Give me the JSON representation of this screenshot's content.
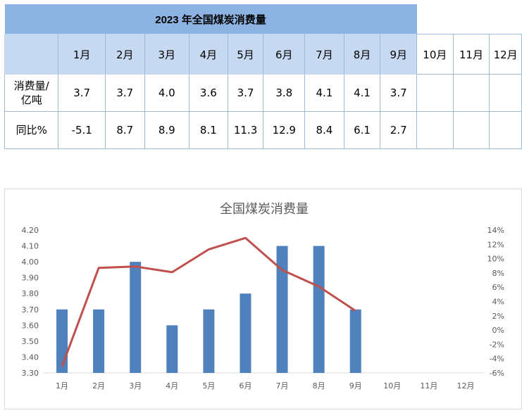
{
  "table": {
    "title": "2023 年全国煤炭消费量",
    "months": [
      "1月",
      "2月",
      "3月",
      "4月",
      "5月",
      "6月",
      "7月",
      "8月",
      "9月",
      "10月",
      "11月",
      "12月"
    ],
    "rows": [
      {
        "label_line1": "消费量/",
        "label_line2": "亿吨",
        "values": [
          "3.7",
          "3.7",
          "4.0",
          "3.6",
          "3.7",
          "3.8",
          "4.1",
          "4.1",
          "3.7",
          "",
          "",
          ""
        ]
      },
      {
        "label_line1": "同比%",
        "label_line2": "",
        "values": [
          "-5.1",
          "8.7",
          "8.9",
          "8.1",
          "11.3",
          "12.9",
          "8.4",
          "6.1",
          "2.7",
          "",
          "",
          ""
        ]
      }
    ]
  },
  "chart_data": {
    "type": "bar",
    "title": "全国煤炭消费量",
    "categories": [
      "1月",
      "2月",
      "3月",
      "4月",
      "5月",
      "6月",
      "7月",
      "8月",
      "9月",
      "10月",
      "11月",
      "12月"
    ],
    "series": [
      {
        "type": "bar",
        "axis": "left",
        "color": "#4f81bd",
        "values": [
          3.7,
          3.7,
          4.0,
          3.6,
          3.7,
          3.8,
          4.1,
          4.1,
          3.7,
          null,
          null,
          null
        ]
      },
      {
        "type": "line",
        "axis": "right",
        "color": "#c0504d",
        "values": [
          -5.1,
          8.7,
          8.9,
          8.1,
          11.3,
          12.9,
          8.4,
          6.1,
          2.7,
          null,
          null,
          null
        ]
      }
    ],
    "y_left": {
      "min": 3.3,
      "max": 4.2,
      "step": 0.1,
      "ticks": [
        "3.30",
        "3.40",
        "3.50",
        "3.60",
        "3.70",
        "3.80",
        "3.90",
        "4.00",
        "4.10",
        "4.20"
      ]
    },
    "y_right": {
      "min": -6,
      "max": 14,
      "step": 2,
      "ticks": [
        "-6%",
        "-4%",
        "-2%",
        "0%",
        "2%",
        "4%",
        "6%",
        "8%",
        "10%",
        "12%",
        "14%"
      ]
    },
    "grid": false,
    "legend": "none"
  }
}
